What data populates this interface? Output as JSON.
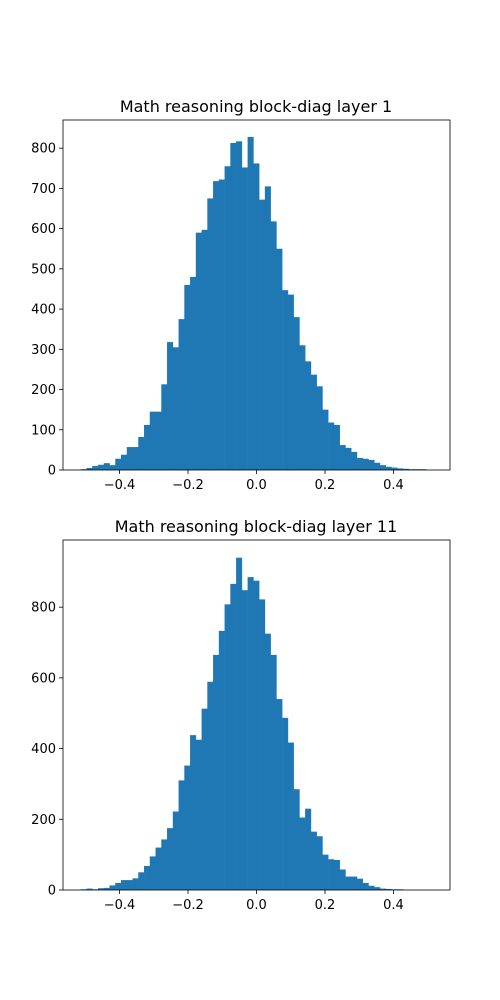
{
  "chart_data": [
    {
      "type": "bar",
      "title": "Math reasoning block-diag layer 1",
      "xlabel": "",
      "ylabel": "",
      "color": "#1f77b4",
      "grid": false,
      "xlim": [
        -0.565,
        0.565
      ],
      "ylim": [
        0,
        870
      ],
      "xticks": [
        -0.4,
        -0.2,
        0.0,
        0.2,
        0.4
      ],
      "xtick_labels": [
        "−0.4",
        "−0.2",
        "0.0",
        "0.2",
        "0.4"
      ],
      "yticks": [
        0,
        100,
        200,
        300,
        400,
        500,
        600,
        700,
        800
      ],
      "ytick_labels": [
        "0",
        "100",
        "200",
        "300",
        "400",
        "500",
        "600",
        "700",
        "800"
      ],
      "bins": {
        "start": -0.53,
        "width": 0.0168,
        "counts": [
          0,
          2,
          5,
          10,
          13,
          17,
          12,
          28,
          38,
          57,
          57,
          82,
          112,
          145,
          145,
          213,
          318,
          305,
          375,
          460,
          480,
          590,
          597,
          675,
          718,
          722,
          755,
          813,
          817,
          752,
          828,
          762,
          672,
          705,
          618,
          550,
          447,
          436,
          380,
          310,
          270,
          237,
          208,
          150,
          118,
          112,
          62,
          55,
          45,
          30,
          28,
          25,
          18,
          12,
          8,
          6,
          4,
          3,
          2,
          2,
          2,
          0
        ]
      }
    },
    {
      "type": "bar",
      "title": "Math reasoning block-diag layer 11",
      "xlabel": "",
      "ylabel": "",
      "color": "#1f77b4",
      "grid": false,
      "xlim": [
        -0.565,
        0.565
      ],
      "ylim": [
        0,
        990
      ],
      "xticks": [
        -0.4,
        -0.2,
        0.0,
        0.2,
        0.4
      ],
      "xtick_labels": [
        "−0.4",
        "−0.2",
        "0.0",
        "0.2",
        "0.4"
      ],
      "yticks": [
        0,
        200,
        400,
        600,
        800
      ],
      "ytick_labels": [
        "0",
        "200",
        "400",
        "600",
        "800"
      ],
      "bins": {
        "start": -0.53,
        "width": 0.0168,
        "counts": [
          0,
          2,
          4,
          2,
          5,
          6,
          13,
          20,
          28,
          28,
          33,
          50,
          68,
          95,
          120,
          143,
          175,
          222,
          310,
          352,
          438,
          425,
          513,
          589,
          665,
          733,
          808,
          866,
          940,
          848,
          885,
          875,
          822,
          725,
          665,
          540,
          487,
          417,
          285,
          205,
          230,
          165,
          152,
          100,
          87,
          85,
          58,
          38,
          38,
          32,
          20,
          12,
          8,
          4,
          3,
          2,
          2,
          0,
          0,
          0,
          0,
          0
        ]
      }
    }
  ]
}
